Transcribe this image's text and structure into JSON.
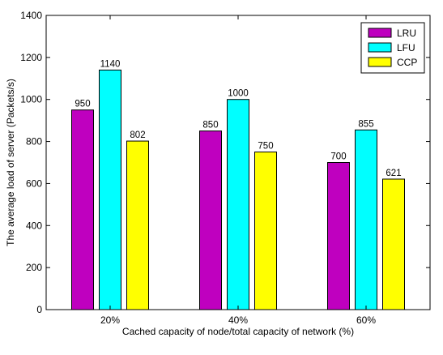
{
  "chart_data": {
    "type": "bar",
    "categories": [
      "20%",
      "40%",
      "60%"
    ],
    "series": [
      {
        "name": "LRU",
        "values": [
          950,
          850,
          700
        ],
        "color": "#bf00bf"
      },
      {
        "name": "LFU",
        "values": [
          1140,
          1000,
          855
        ],
        "color": "#00ffff"
      },
      {
        "name": "CCP",
        "values": [
          802,
          750,
          621
        ],
        "color": "#ffff00"
      }
    ],
    "xlabel": "Cached capacity of node/total capacity of network (%)",
    "ylabel": "The average load of server (Packets/s)",
    "ylim": [
      0,
      1400
    ],
    "yticks": [
      0,
      200,
      400,
      600,
      800,
      1000,
      1200,
      1400
    ],
    "grid": false,
    "legend_position": "top-right"
  }
}
